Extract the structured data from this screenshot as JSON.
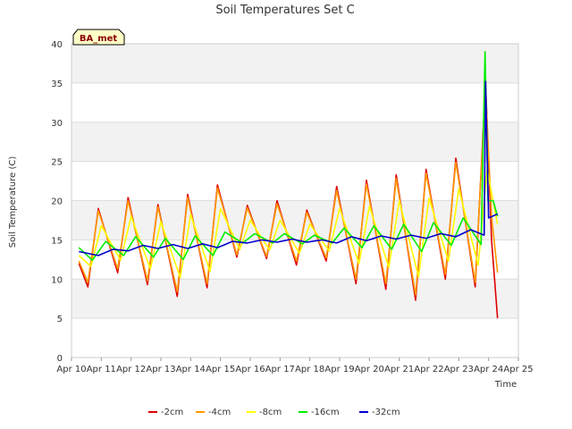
{
  "chart_data": {
    "type": "line",
    "title": "Soil Temperatures Set C",
    "xlabel": "Time",
    "ylabel": "Soil Temperature (C)",
    "ylim": [
      0,
      40
    ],
    "yticks": [
      0,
      5,
      10,
      15,
      20,
      25,
      30,
      35,
      40
    ],
    "xlim": [
      10,
      25
    ],
    "xticks": [
      {
        "day": 10,
        "label": "Apr 10"
      },
      {
        "day": 11,
        "label": "Apr 11"
      },
      {
        "day": 12,
        "label": "Apr 12"
      },
      {
        "day": 13,
        "label": "Apr 13"
      },
      {
        "day": 14,
        "label": "Apr 14"
      },
      {
        "day": 15,
        "label": "Apr 15"
      },
      {
        "day": 16,
        "label": "Apr 16"
      },
      {
        "day": 17,
        "label": "Apr 17"
      },
      {
        "day": 18,
        "label": "Apr 18"
      },
      {
        "day": 19,
        "label": "Apr 19"
      },
      {
        "day": 20,
        "label": "Apr 20"
      },
      {
        "day": 21,
        "label": "Apr 21"
      },
      {
        "day": 22,
        "label": "Apr 22"
      },
      {
        "day": 23,
        "label": "Apr 23"
      },
      {
        "day": 24,
        "label": "Apr 24"
      },
      {
        "day": 25,
        "label": "Apr 25"
      }
    ],
    "grid": true,
    "legend": "bottom",
    "badge": "BA_met",
    "series": [
      {
        "name": "-2cm",
        "color": "#dd0000",
        "points": [
          [
            10.25,
            12.0
          ],
          [
            10.55,
            9.0
          ],
          [
            10.9,
            19.0
          ],
          [
            11.55,
            10.8
          ],
          [
            11.9,
            20.4
          ],
          [
            12.55,
            9.3
          ],
          [
            12.9,
            19.5
          ],
          [
            13.55,
            7.8
          ],
          [
            13.9,
            20.8
          ],
          [
            14.55,
            8.9
          ],
          [
            14.9,
            22.0
          ],
          [
            15.55,
            12.8
          ],
          [
            15.9,
            19.4
          ],
          [
            16.55,
            12.6
          ],
          [
            16.9,
            20.0
          ],
          [
            17.55,
            11.8
          ],
          [
            17.9,
            18.8
          ],
          [
            18.55,
            12.3
          ],
          [
            18.9,
            21.8
          ],
          [
            19.55,
            9.4
          ],
          [
            19.9,
            22.6
          ],
          [
            20.55,
            8.7
          ],
          [
            20.9,
            23.3
          ],
          [
            21.55,
            7.3
          ],
          [
            21.9,
            24.0
          ],
          [
            22.55,
            10.0
          ],
          [
            22.9,
            25.4
          ],
          [
            23.55,
            9.0
          ],
          [
            23.9,
            35.0
          ],
          [
            24.1,
            15.0
          ],
          [
            24.3,
            5.0
          ]
        ]
      },
      {
        "name": "-4cm",
        "color": "#ff9900",
        "points": [
          [
            10.25,
            12.3
          ],
          [
            10.55,
            9.6
          ],
          [
            10.9,
            18.7
          ],
          [
            11.55,
            11.3
          ],
          [
            11.9,
            20.0
          ],
          [
            12.55,
            9.8
          ],
          [
            12.9,
            19.2
          ],
          [
            13.55,
            8.4
          ],
          [
            13.9,
            20.4
          ],
          [
            14.55,
            9.4
          ],
          [
            14.9,
            21.6
          ],
          [
            15.55,
            13.1
          ],
          [
            15.9,
            19.1
          ],
          [
            16.55,
            12.9
          ],
          [
            16.9,
            19.6
          ],
          [
            17.55,
            12.3
          ],
          [
            17.9,
            18.5
          ],
          [
            18.55,
            12.7
          ],
          [
            18.9,
            21.3
          ],
          [
            19.55,
            10.0
          ],
          [
            19.9,
            22.1
          ],
          [
            20.55,
            9.4
          ],
          [
            20.9,
            22.8
          ],
          [
            21.55,
            8.0
          ],
          [
            21.9,
            23.5
          ],
          [
            22.55,
            10.6
          ],
          [
            22.9,
            24.9
          ],
          [
            23.55,
            9.6
          ],
          [
            23.9,
            34.0
          ],
          [
            24.1,
            18.0
          ],
          [
            24.3,
            10.8
          ]
        ]
      },
      {
        "name": "-8cm",
        "color": "#ffff00",
        "points": [
          [
            10.25,
            13.0
          ],
          [
            10.65,
            11.6
          ],
          [
            11.0,
            16.8
          ],
          [
            11.65,
            12.4
          ],
          [
            12.0,
            18.0
          ],
          [
            12.65,
            11.3
          ],
          [
            13.0,
            17.3
          ],
          [
            13.65,
            10.2
          ],
          [
            14.0,
            18.2
          ],
          [
            14.65,
            11.0
          ],
          [
            15.0,
            19.0
          ],
          [
            15.65,
            13.8
          ],
          [
            16.0,
            17.5
          ],
          [
            16.65,
            13.7
          ],
          [
            17.0,
            17.5
          ],
          [
            17.65,
            13.3
          ],
          [
            18.0,
            17.0
          ],
          [
            18.65,
            13.6
          ],
          [
            19.0,
            19.0
          ],
          [
            19.65,
            12.0
          ],
          [
            20.0,
            19.3
          ],
          [
            20.65,
            11.5
          ],
          [
            21.0,
            20.0
          ],
          [
            21.65,
            10.3
          ],
          [
            22.0,
            20.3
          ],
          [
            22.65,
            12.3
          ],
          [
            23.0,
            21.5
          ],
          [
            23.65,
            11.8
          ],
          [
            23.95,
            24.0
          ],
          [
            24.2,
            19.0
          ],
          [
            24.3,
            17.0
          ]
        ]
      },
      {
        "name": "-16cm",
        "color": "#00ee00",
        "points": [
          [
            10.25,
            14.0
          ],
          [
            10.7,
            12.4
          ],
          [
            11.15,
            14.8
          ],
          [
            11.75,
            13.0
          ],
          [
            12.15,
            15.4
          ],
          [
            12.75,
            12.8
          ],
          [
            13.15,
            15.2
          ],
          [
            13.75,
            12.5
          ],
          [
            14.15,
            15.5
          ],
          [
            14.75,
            13.0
          ],
          [
            15.15,
            16.0
          ],
          [
            15.75,
            14.6
          ],
          [
            16.15,
            15.8
          ],
          [
            16.75,
            14.6
          ],
          [
            17.15,
            15.8
          ],
          [
            17.75,
            14.5
          ],
          [
            18.15,
            15.6
          ],
          [
            18.75,
            14.6
          ],
          [
            19.15,
            16.5
          ],
          [
            19.75,
            14.0
          ],
          [
            20.15,
            16.8
          ],
          [
            20.75,
            13.8
          ],
          [
            21.15,
            17.0
          ],
          [
            21.75,
            13.5
          ],
          [
            22.15,
            17.2
          ],
          [
            22.75,
            14.3
          ],
          [
            23.15,
            17.8
          ],
          [
            23.75,
            14.4
          ],
          [
            23.88,
            39.0
          ],
          [
            23.98,
            20.0
          ],
          [
            24.15,
            20.0
          ],
          [
            24.3,
            18.0
          ]
        ]
      },
      {
        "name": "-32cm",
        "color": "#0000cc",
        "points": [
          [
            10.25,
            13.5
          ],
          [
            10.9,
            13.0
          ],
          [
            11.4,
            13.8
          ],
          [
            11.9,
            13.6
          ],
          [
            12.4,
            14.3
          ],
          [
            12.9,
            13.9
          ],
          [
            13.4,
            14.4
          ],
          [
            13.9,
            13.9
          ],
          [
            14.4,
            14.5
          ],
          [
            14.9,
            14.0
          ],
          [
            15.4,
            14.8
          ],
          [
            15.9,
            14.6
          ],
          [
            16.4,
            15.0
          ],
          [
            16.9,
            14.7
          ],
          [
            17.4,
            15.1
          ],
          [
            17.9,
            14.7
          ],
          [
            18.4,
            15.0
          ],
          [
            18.9,
            14.6
          ],
          [
            19.4,
            15.4
          ],
          [
            19.9,
            14.9
          ],
          [
            20.4,
            15.5
          ],
          [
            20.9,
            15.1
          ],
          [
            21.4,
            15.6
          ],
          [
            21.9,
            15.2
          ],
          [
            22.4,
            15.8
          ],
          [
            22.9,
            15.4
          ],
          [
            23.4,
            16.3
          ],
          [
            23.85,
            15.6
          ],
          [
            23.9,
            35.2
          ],
          [
            24.0,
            17.8
          ],
          [
            24.3,
            18.3
          ]
        ]
      }
    ]
  }
}
